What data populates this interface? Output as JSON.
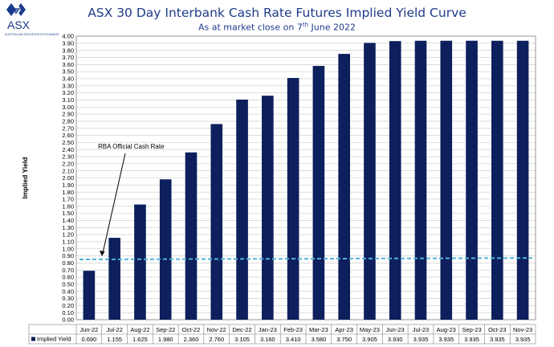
{
  "logo": {
    "text": "ASX",
    "subtext": "AUSTRALIAN SECURITIES EXCHANGE"
  },
  "title": "ASX 30 Day Interbank Cash Rate Futures Implied Yield Curve",
  "subtitle_pre": "As at market close on 7",
  "subtitle_sup": "th",
  "subtitle_post": " June 2022",
  "colors": {
    "bar": "#0d1f5c",
    "title": "#1f3b8a",
    "rba_line": "#4fb3d9",
    "grid": "#c8c8c8"
  },
  "chart_data": {
    "type": "bar",
    "title": "ASX 30 Day Interbank Cash Rate Futures Implied Yield Curve",
    "ylabel": "Implied Yield",
    "ylim": [
      0,
      4
    ],
    "ytick_step": 0.1,
    "categories": [
      "Jun-22",
      "Jul-22",
      "Aug-22",
      "Sep-22",
      "Oct-22",
      "Nov-22",
      "Dec-22",
      "Jan-23",
      "Feb-23",
      "Mar-23",
      "Apr-23",
      "May-23",
      "Jun-23",
      "Jul-23",
      "Aug-23",
      "Sep-23",
      "Oct-23",
      "Nov-23"
    ],
    "series": [
      {
        "name": "Implied Yield",
        "values": [
          0.69,
          1.155,
          1.625,
          1.98,
          2.36,
          2.76,
          3.105,
          3.16,
          3.41,
          3.58,
          3.75,
          3.905,
          3.93,
          3.935,
          3.935,
          3.935,
          3.935,
          3.935
        ],
        "labels": [
          "0.690",
          "1.155",
          "1.625",
          "1.980",
          "2.360",
          "2.760",
          "3.105",
          "3.160",
          "3.410",
          "3.580",
          "3.750",
          "3.905",
          "3.930",
          "3.935",
          "3.935",
          "3.935",
          "3.935",
          "3.935"
        ]
      }
    ],
    "reference_line": {
      "label": "RBA Official Cash Rate",
      "start": 0.85,
      "end": 0.87
    },
    "grid": true,
    "legend": "data-table"
  }
}
